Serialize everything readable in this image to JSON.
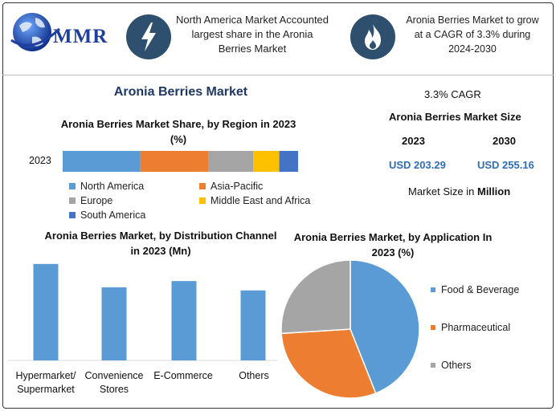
{
  "logo": {
    "text": "MMR"
  },
  "header": {
    "left_text": "North America Market Accounted largest share in the Aronia Berries Market",
    "right_text": "Aronia Berries Market to grow at a CAGR of 3.3% during 2024-2030",
    "left_icon": "lightning-icon",
    "right_icon": "flame-icon"
  },
  "main_title": "Aronia Berries Market",
  "market_size": {
    "cagr": "3.3% CAGR",
    "title": "Aronia Berries Market Size",
    "year_1": "2023",
    "year_2": "2030",
    "value_1": "USD 203.29",
    "value_2": "USD 255.16",
    "unit_prefix": "Market Size in ",
    "unit_bold": "Million"
  },
  "colors": {
    "blue": "#5b9bd5",
    "orange": "#ed7d31",
    "gray": "#a5a5a5",
    "yellow": "#ffc000",
    "dark_blue": "#4472c4",
    "title_blue": "#1f3864"
  },
  "chart_data": [
    {
      "type": "bar",
      "orientation": "horizontal-stacked",
      "title": "Aronia Berries Market Share, by Region in 2023 (%)",
      "categories": [
        "2023"
      ],
      "series": [
        {
          "name": "North America",
          "values": [
            33
          ],
          "color": "#5b9bd5"
        },
        {
          "name": "Asia-Pacific",
          "values": [
            29
          ],
          "color": "#ed7d31"
        },
        {
          "name": "Europe",
          "values": [
            19
          ],
          "color": "#a5a5a5"
        },
        {
          "name": "Middle East and Africa",
          "values": [
            11
          ],
          "color": "#ffc000"
        },
        {
          "name": "South America",
          "values": [
            8
          ],
          "color": "#4472c4"
        }
      ],
      "legend_position": "bottom"
    },
    {
      "type": "bar",
      "title": "Aronia Berries Market, by Distribution Channel in 2023 (Mn)",
      "categories": [
        "Hypermarket/ Supermarket",
        "Convenience Stores",
        "E-Commerce",
        "Others"
      ],
      "values": [
        62,
        47,
        51,
        45
      ],
      "ylim": [
        0,
        65
      ],
      "color": "#5b9bd5",
      "grid": false
    },
    {
      "type": "pie",
      "title": "Aronia Berries Market, by Application In 2023 (%)",
      "labels": [
        "Food & Beverage",
        "Pharmaceutical",
        "Others"
      ],
      "values": [
        44,
        30,
        26
      ],
      "colors": [
        "#5b9bd5",
        "#ed7d31",
        "#a5a5a5"
      ],
      "legend_position": "right"
    }
  ]
}
